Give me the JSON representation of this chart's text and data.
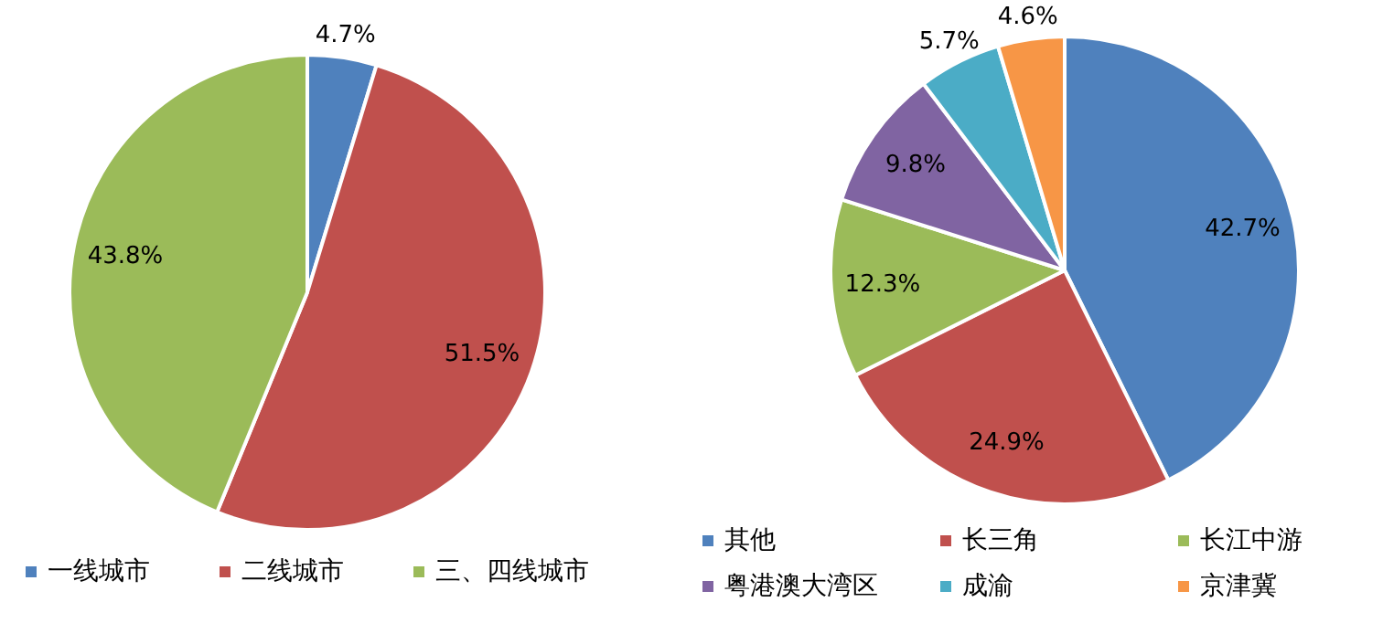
{
  "chart_data": [
    {
      "type": "pie",
      "categories": [
        "一线城市",
        "二线城市",
        "三、四线城市"
      ],
      "values": [
        4.7,
        51.5,
        43.8
      ],
      "value_labels": [
        "4.7%",
        "51.5%",
        "43.8%"
      ],
      "colors": [
        "#4f81bd",
        "#c0504d",
        "#9bbb59"
      ],
      "legend": "bottom"
    },
    {
      "type": "pie",
      "categories": [
        "其他",
        "长三角",
        "长江中游",
        "粤港澳大湾区",
        "成渝",
        "京津冀"
      ],
      "values": [
        42.7,
        24.9,
        12.3,
        9.8,
        5.7,
        4.6
      ],
      "value_labels": [
        "42.7%",
        "24.9%",
        "12.3%",
        "9.8%",
        "5.7%",
        "4.6%"
      ],
      "colors": [
        "#4f81bd",
        "#c0504d",
        "#9bbb59",
        "#8064a2",
        "#4bacc6",
        "#f79646"
      ],
      "legend": "bottom"
    }
  ]
}
